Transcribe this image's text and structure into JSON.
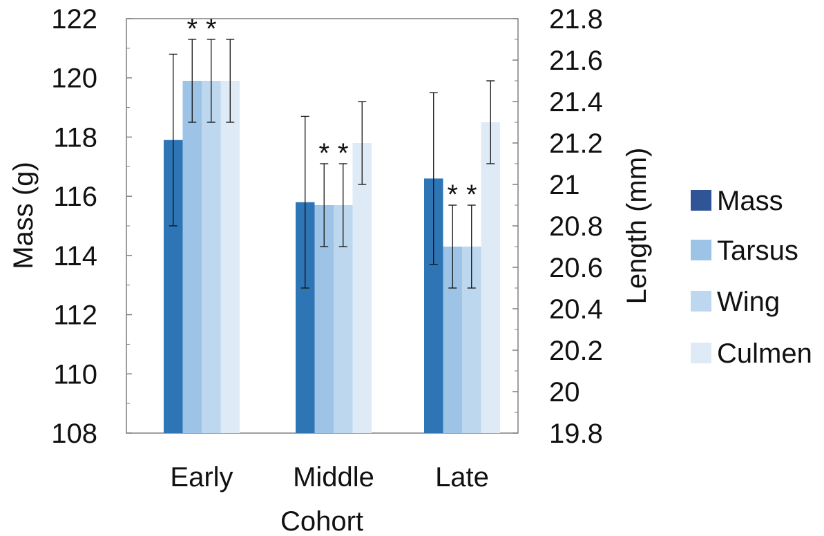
{
  "chart_data": {
    "type": "bar",
    "title": "",
    "xlabel": "Cohort",
    "ylabel": "Mass (g)",
    "y2label": "Length (mm)",
    "categories": [
      "Early",
      "Middle",
      "Late"
    ],
    "ylim": [
      108,
      122
    ],
    "y2lim": [
      19.8,
      21.8
    ],
    "yticks": [
      "108",
      "110",
      "112",
      "114",
      "116",
      "118",
      "120",
      "122"
    ],
    "y2ticks": [
      "19.8",
      "20",
      "20.2",
      "20.4",
      "20.6",
      "20.8",
      "21",
      "21.2",
      "21.4",
      "21.6",
      "21.8"
    ],
    "grid": false,
    "legend_position": "right",
    "series": [
      {
        "name": "Mass",
        "axis": "left",
        "color": "#2E75B6",
        "values": [
          117.9,
          115.8,
          116.6
        ],
        "errors": [
          2.9,
          2.9,
          2.9
        ],
        "significant": [
          false,
          false,
          false
        ]
      },
      {
        "name": "Tarsus",
        "axis": "right",
        "color": "#9DC3E6",
        "values": [
          21.5,
          20.9,
          20.7
        ],
        "errors": [
          0.2,
          0.2,
          0.2
        ],
        "significant": [
          true,
          true,
          true
        ]
      },
      {
        "name": "Wing",
        "axis": "right",
        "color": "#BDD7EE",
        "values": [
          21.5,
          20.9,
          20.7
        ],
        "errors": [
          0.2,
          0.2,
          0.2
        ],
        "significant": [
          true,
          true,
          true
        ]
      },
      {
        "name": "Culmen",
        "axis": "right",
        "color": "#DEEBF7",
        "values": [
          21.5,
          21.2,
          21.3
        ],
        "errors": [
          0.2,
          0.2,
          0.2
        ],
        "significant": [
          false,
          false,
          false
        ]
      }
    ],
    "significance_marker": "*",
    "legend_swatch_colors": [
      "#2F5597",
      "#9DC3E6",
      "#BDD7EE",
      "#DEEBF7"
    ],
    "axis_color": "#7F7F7F"
  }
}
